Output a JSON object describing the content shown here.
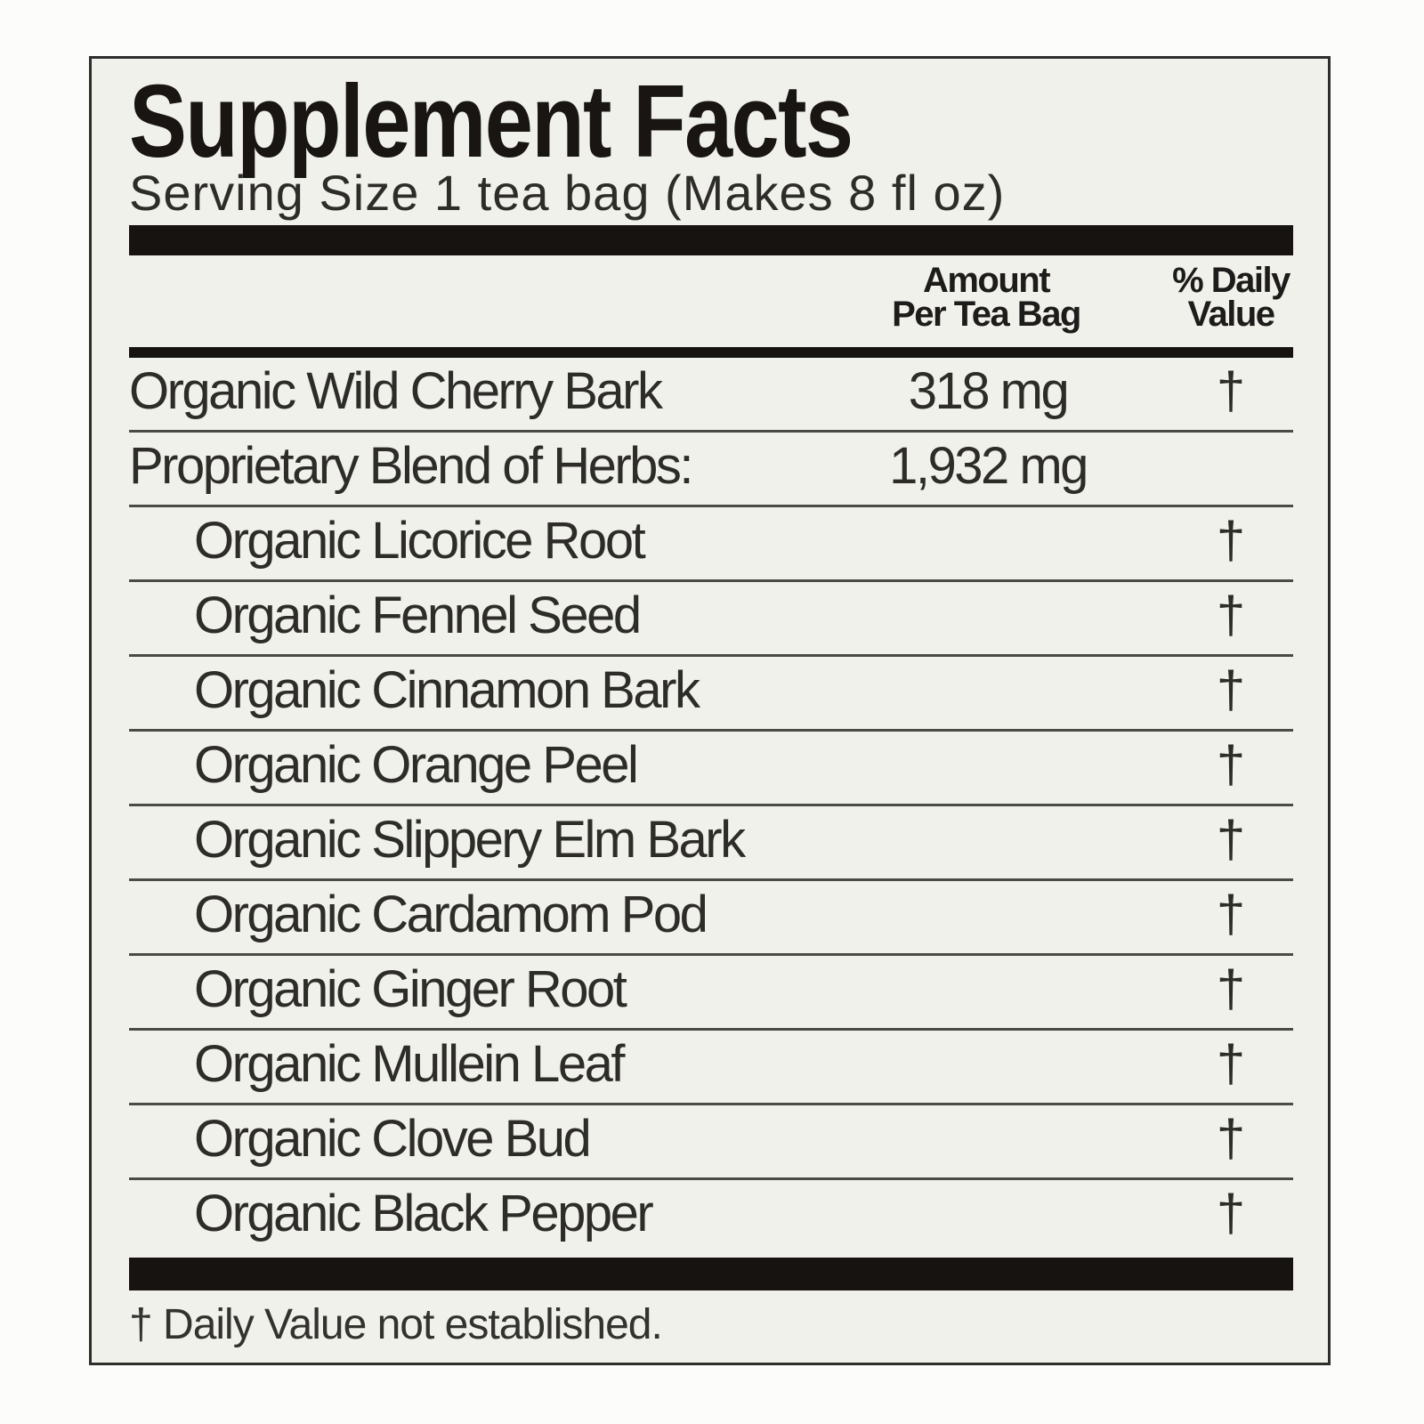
{
  "label": {
    "title": "Supplement Facts",
    "serving_size": "Serving Size 1 tea bag (Makes 8 fl oz)",
    "columns": {
      "amount_top": "Amount",
      "amount_bottom": "Per Tea Bag",
      "daily_top": "% Daily",
      "daily_bottom": "Value"
    },
    "rows": [
      {
        "name": "Organic Wild Cherry Bark",
        "amount": "318 mg",
        "daily": "†",
        "indent": false
      },
      {
        "name": "Proprietary Blend of Herbs:",
        "amount": "1,932 mg",
        "daily": "",
        "indent": false
      },
      {
        "name": "Organic Licorice Root",
        "amount": "",
        "daily": "†",
        "indent": true
      },
      {
        "name": "Organic Fennel Seed",
        "amount": "",
        "daily": "†",
        "indent": true
      },
      {
        "name": "Organic Cinnamon Bark",
        "amount": "",
        "daily": "†",
        "indent": true
      },
      {
        "name": "Organic Orange Peel",
        "amount": "",
        "daily": "†",
        "indent": true
      },
      {
        "name": "Organic Slippery Elm Bark",
        "amount": "",
        "daily": "†",
        "indent": true
      },
      {
        "name": "Organic Cardamom Pod",
        "amount": "",
        "daily": "†",
        "indent": true
      },
      {
        "name": "Organic Ginger Root",
        "amount": "",
        "daily": "†",
        "indent": true
      },
      {
        "name": "Organic Mullein Leaf",
        "amount": "",
        "daily": "†",
        "indent": true
      },
      {
        "name": "Organic Clove Bud",
        "amount": "",
        "daily": "†",
        "indent": true
      },
      {
        "name": "Organic Black Pepper",
        "amount": "",
        "daily": "†",
        "indent": true
      }
    ],
    "footnote": "† Daily Value not established."
  },
  "colors": {
    "page_background": "#fcfcfa",
    "label_background": "#f1f1ec",
    "border": "#2e2d2b",
    "thick_rule": "#161311",
    "row_separator": "#4b4a47",
    "text": "#2d2c29"
  }
}
